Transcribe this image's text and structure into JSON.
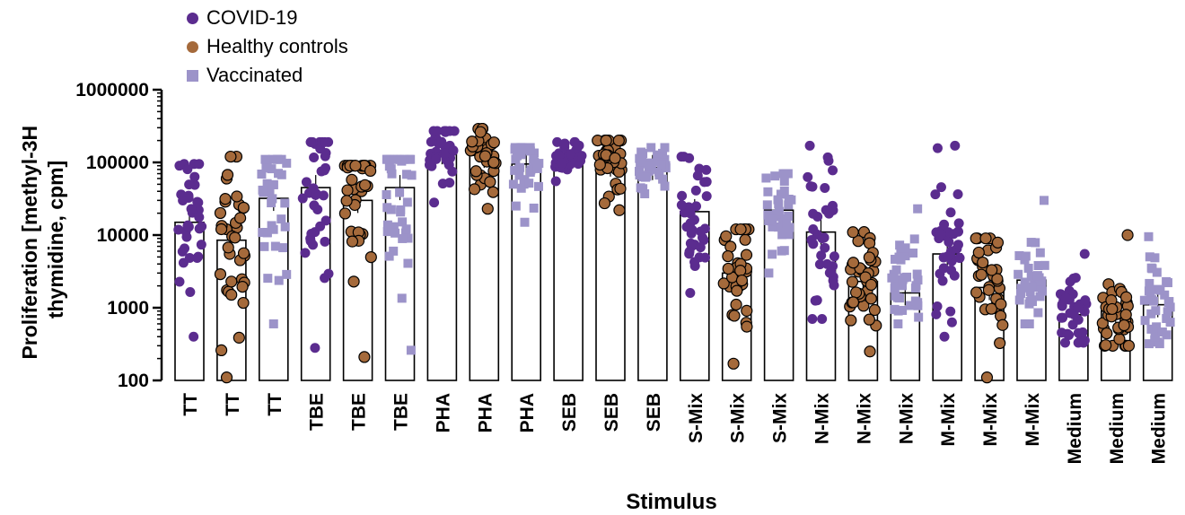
{
  "chart_data": {
    "type": "bar",
    "title": "",
    "xlabel": "Stimulus",
    "ylabel_lines": [
      "Proliferation [methyl-3H",
      "thymidine, cpm]"
    ],
    "yscale": "log",
    "ylim": [
      100,
      1000000
    ],
    "yticks": [
      "100",
      "1000",
      "10000",
      "100000",
      "1000000"
    ],
    "legend": {
      "placement": "top-left"
    },
    "groups": [
      {
        "name": "COVID-19",
        "color": "#5b2c8f",
        "marker": "circle"
      },
      {
        "name": "Healthy controls",
        "color": "#a56a3b",
        "marker": "circle"
      },
      {
        "name": "Vaccinated",
        "color": "#9c93c9",
        "marker": "square"
      }
    ],
    "categories": [
      "TT",
      "TT",
      "TT",
      "TBE",
      "TBE",
      "TBE",
      "PHA",
      "PHA",
      "PHA",
      "SEB",
      "SEB",
      "SEB",
      "S-Mix",
      "S-Mix",
      "S-Mix",
      "N-Mix",
      "N-Mix",
      "N-Mix",
      "M-Mix",
      "M-Mix",
      "M-Mix",
      "Medium",
      "Medium",
      "Medium"
    ],
    "bar_group": [
      "COVID-19",
      "Healthy controls",
      "Vaccinated",
      "COVID-19",
      "Healthy controls",
      "Vaccinated",
      "COVID-19",
      "Healthy controls",
      "Vaccinated",
      "COVID-19",
      "Healthy controls",
      "Vaccinated",
      "COVID-19",
      "Healthy controls",
      "Vaccinated",
      "COVID-19",
      "Healthy controls",
      "Vaccinated",
      "COVID-19",
      "Healthy controls",
      "Vaccinated",
      "COVID-19",
      "Healthy controls",
      "Vaccinated"
    ],
    "bar_values": [
      15000,
      8500,
      32000,
      45000,
      30000,
      45000,
      140000,
      125000,
      95000,
      115000,
      95000,
      85000,
      21000,
      3000,
      22000,
      11000,
      2300,
      1600,
      5500,
      1900,
      2400,
      800,
      900,
      1100
    ],
    "point_ranges": [
      [
        400,
        95000
      ],
      [
        110,
        120000
      ],
      [
        600,
        110000
      ],
      [
        280,
        190000
      ],
      [
        210,
        90000
      ],
      [
        260,
        110000
      ],
      [
        28000,
        270000
      ],
      [
        23000,
        290000
      ],
      [
        15000,
        160000
      ],
      [
        55000,
        190000
      ],
      [
        22000,
        200000
      ],
      [
        37000,
        160000
      ],
      [
        1600,
        120000
      ],
      [
        170,
        12000
      ],
      [
        3000,
        70000
      ],
      [
        700,
        170000
      ],
      [
        250,
        11000
      ],
      [
        600,
        23000
      ],
      [
        400,
        170000
      ],
      [
        110,
        9000
      ],
      [
        600,
        30000
      ],
      [
        330,
        5500
      ],
      [
        300,
        10000
      ],
      [
        320,
        9500
      ]
    ]
  }
}
